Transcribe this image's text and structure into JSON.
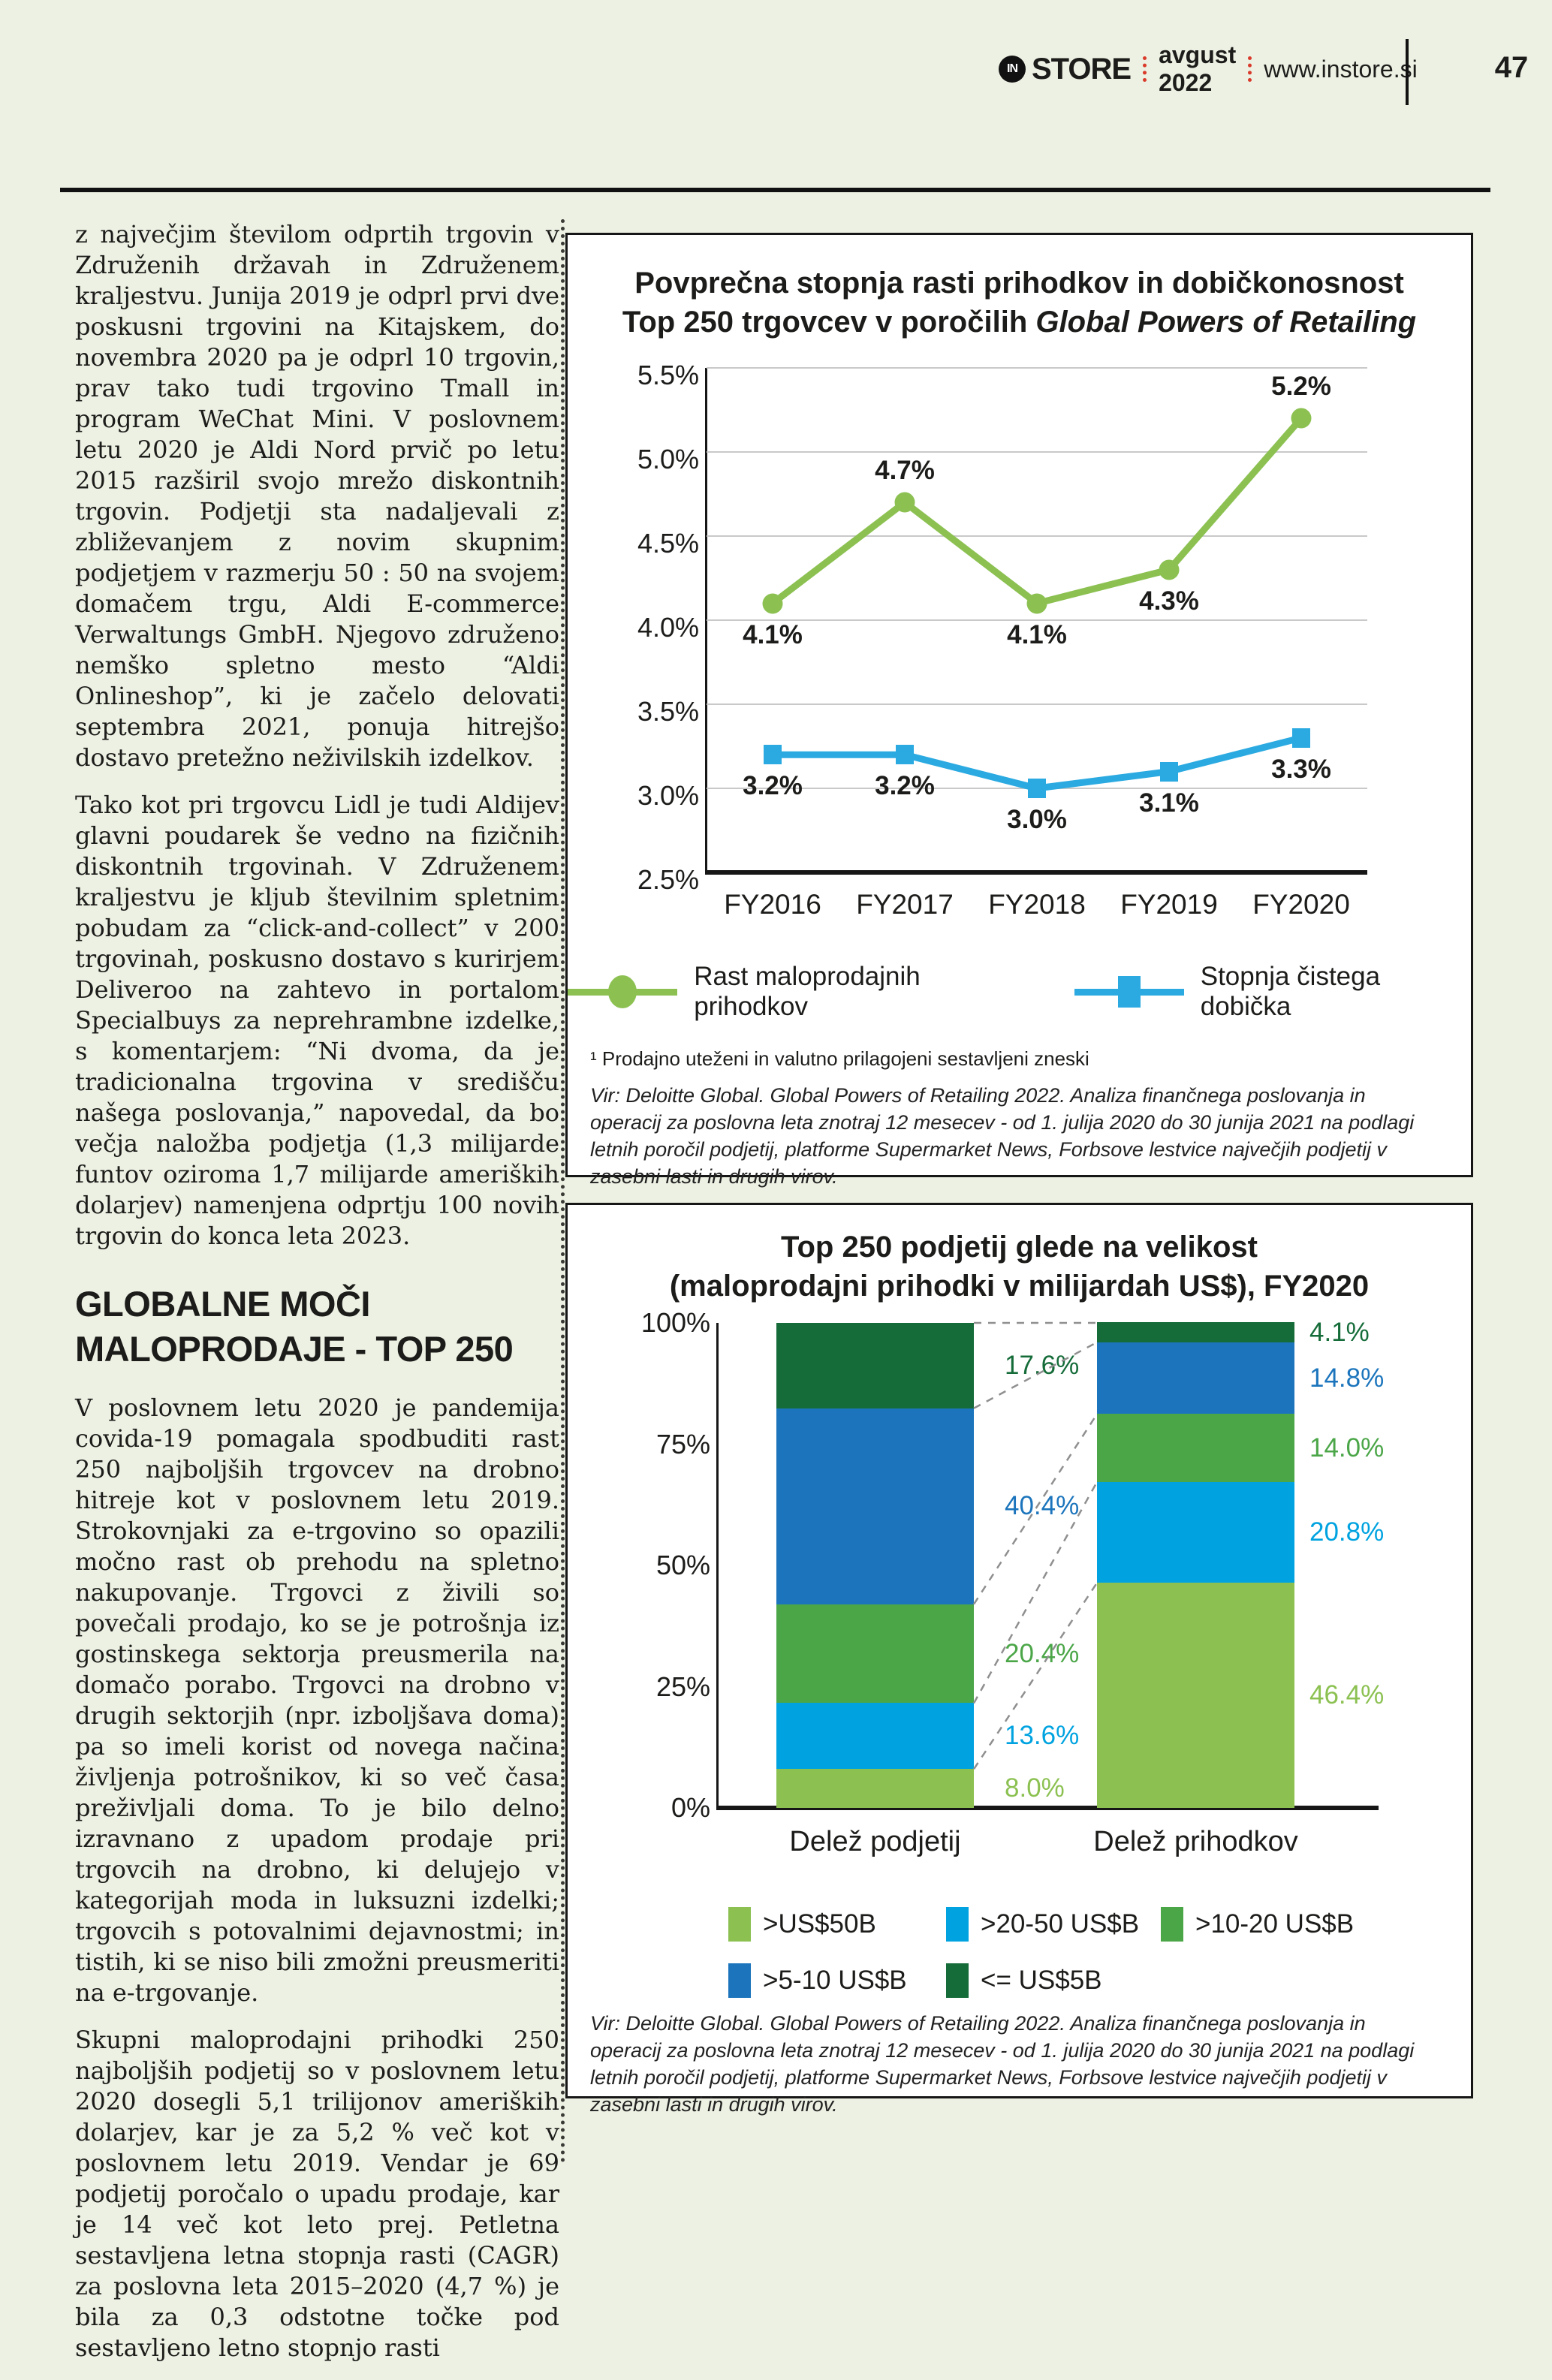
{
  "colors": {
    "page_bg": "#edf1e3",
    "green": "#8CC152",
    "blue_line": "#2BAAE1",
    "cyan": "#00A3E0",
    "dark_blue": "#1C75BC",
    "medium_green": "#4BA648",
    "dark_green": "#156C39",
    "grid": "#c9c9c9",
    "red_divider": "#d93a2b"
  },
  "header": {
    "logo_icon": "IN",
    "brand": "STORE",
    "issue": "avgust 2022",
    "site": "www.instore.si",
    "page_number": "47"
  },
  "article": {
    "paragraphs": [
      "z največjim številom odprtih trgovin v Združenih državah in Združenem kraljestvu. Junija 2019 je odprl prvi dve poskusni trgovini na Kitajskem, do novembra 2020 pa je odprl 10 trgovin, prav tako tudi trgovino Tmall in program WeChat Mini. V poslovnem letu 2020 je Aldi Nord prvič po letu 2015 razširil svojo mrežo diskontnih trgovin. Podjetji sta nadaljevali z zbliževanjem z novim skupnim podjetjem v razmerju 50 : 50 na svojem domačem trgu, Aldi E-commerce Verwaltungs GmbH. Njegovo združeno nemško spletno mesto “Aldi Onlineshop”, ki je začelo delovati septembra 2021, ponuja hitrejšo dostavo pretežno neživilskih izdelkov.",
      "Tako kot pri trgovcu Lidl je tudi Aldijev glavni poudarek še vedno na fizičnih diskontnih trgovinah. V Združenem kraljestvu je kljub številnim spletnim pobudam za “click-and-collect” v 200 trgovinah, poskusno dostavo s kurirjem Deliveroo na zahtevo in portalom Specialbuys za neprehrambne izdelke, s komentarjem: “Ni dvoma, da je tradicionalna trgovina v središču našega poslovanja,” napovedal, da bo večja naložba podjetja (1,3 milijarde funtov oziroma 1,7 milijarde ameriških dolarjev) namenjena odprtju 100 novih trgovin do konca leta 2023."
    ],
    "heading": "GLOBALNE MOČI MALOPRODAJE - TOP 250",
    "paragraphs2": [
      "V poslovnem letu 2020 je pandemija covida-19 pomagala spodbuditi rast 250 najboljših trgovcev na drobno hitreje kot v poslovnem letu 2019. Strokovnjaki za e-trgovino so opazili močno rast ob prehodu na spletno nakupovanje. Trgovci z živili so povečali prodajo, ko se je potrošnja iz gostinskega sektorja preusmerila na domačo porabo. Trgovci na drobno v drugih sektorjih (npr. izboljšava doma) pa so imeli korist od novega načina življenja potrošnikov, ki so več časa preživljali doma. To je bilo delno izravnano z upadom prodaje pri trgovcih na drobno, ki delujejo v kategorijah moda in luksuzni izdelki; trgovcih s potovalnimi dejavnostmi; in tistih, ki se niso bili zmožni preusmeriti na e-trgovanje.",
      "Skupni maloprodajni prihodki 250 najboljših podjetij so v poslovnem letu 2020 dosegli 5,1 trilijonov ameriških dolarjev, kar je za 5,2 % več kot v poslovnem letu 2019. Vendar je 69 podjetij poročalo o upadu prodaje, kar je 14 več kot leto prej. Petletna sestavljena letna stopnja rasti (CAGR) za poslovna leta 2015–2020 (4,7 %) je bila za 0,3 odstotne točke pod sestavljeno letno stopnjo rasti"
    ]
  },
  "panels": {
    "p1": {
      "title_line1": "Povprečna stopnja rasti prihodkov in dobičkonosnost",
      "title_line2_regular": "Top 250 trgovcev v poročilih ",
      "title_line2_italic": "Global Powers of Retailing",
      "footnote": "¹ Prodajno uteženi in valutno prilagojeni sestavljeni zneski",
      "source": "Vir: Deloitte Global. Global Powers of Retailing 2022. Analiza finančnega poslovanja in operacij za poslovna leta znotraj 12 mesecev - od 1. julija 2020 do 30 junija 2021 na podlagi letnih poročil podjetij, platforme Supermarket News, Forbsove lestvice največjih podjetij v zasebni lasti in drugih virov."
    },
    "p2": {
      "title_line1": "Top 250 podjetij glede na velikost",
      "title_line2": "(maloprodajni prihodki v milijardah US$), FY2020",
      "source": "Vir: Deloitte Global. Global Powers of Retailing 2022. Analiza finančnega poslovanja in operacij za poslovna leta znotraj 12 mesecev - od 1. julija 2020 do 30 junija 2021 na podlagi letnih poročil podjetij, platforme Supermarket News, Forbsove lestvice največjih podjetij v zasebni lasti in drugih virov."
    }
  },
  "chart_data": [
    {
      "type": "line",
      "title": "Povprečna stopnja rasti prihodkov in dobičkonosnost Top 250 trgovcev v poročilih Global Powers of Retailing",
      "x": [
        "FY2016",
        "FY2017",
        "FY2018",
        "FY2019",
        "FY2020"
      ],
      "series": [
        {
          "name": "Rast maloprodajnih prihodkov",
          "values": [
            4.1,
            4.7,
            4.1,
            4.3,
            5.2
          ],
          "labels": [
            "4.1%",
            "4.7%",
            "4.1%",
            "4.3%",
            "5.2%"
          ],
          "label_pos": [
            "below",
            "above",
            "below",
            "below",
            "above"
          ],
          "color": "#8CC152",
          "marker": "circle"
        },
        {
          "name": "Stopnja čistega dobička",
          "values": [
            3.2,
            3.2,
            3.0,
            3.1,
            3.3
          ],
          "labels": [
            "3.2%",
            "3.2%",
            "3.0%",
            "3.1%",
            "3.3%"
          ],
          "label_pos": [
            "below",
            "below",
            "below",
            "below",
            "below"
          ],
          "color": "#2BAAE1",
          "marker": "square"
        }
      ],
      "ylim": [
        2.5,
        5.5
      ],
      "yticks": [
        "5.5%",
        "5.0%",
        "4.5%",
        "4.0%",
        "3.5%",
        "3.0%",
        "2.5%"
      ],
      "grid": true,
      "legend_position": "bottom"
    },
    {
      "type": "bar",
      "stacked": true,
      "title": "Top 250 podjetij glede na velikost (maloprodajni prihodki v milijardah US$), FY2020",
      "categories": [
        "Delež podjetij",
        "Delež prihodkov"
      ],
      "segments": [
        {
          "name": ">US$50B",
          "color": "#8CC152",
          "values": [
            8.0,
            46.4
          ],
          "labels": [
            "8.0%",
            "46.4%"
          ]
        },
        {
          "name": ">20-50 US$B",
          "color": "#00A3E0",
          "values": [
            13.6,
            20.8
          ],
          "labels": [
            "13.6%",
            "20.8%"
          ]
        },
        {
          "name": ">10-20 US$B",
          "color": "#4BA648",
          "values": [
            20.4,
            14.0
          ],
          "labels": [
            "20.4%",
            "14.0%"
          ]
        },
        {
          "name": ">5-10 US$B",
          "color": "#1C75BC",
          "values": [
            40.4,
            14.8
          ],
          "labels": [
            "40.4%",
            "14.8%"
          ]
        },
        {
          "name": "<= US$5B",
          "color": "#156C39",
          "values": [
            17.6,
            4.1
          ],
          "labels": [
            "17.6%",
            "4.1%"
          ]
        }
      ],
      "ylim": [
        0,
        100
      ],
      "yticks": [
        "100%",
        "75%",
        "50%",
        "25%",
        "0%"
      ],
      "grid": false,
      "legend_position": "bottom"
    }
  ]
}
